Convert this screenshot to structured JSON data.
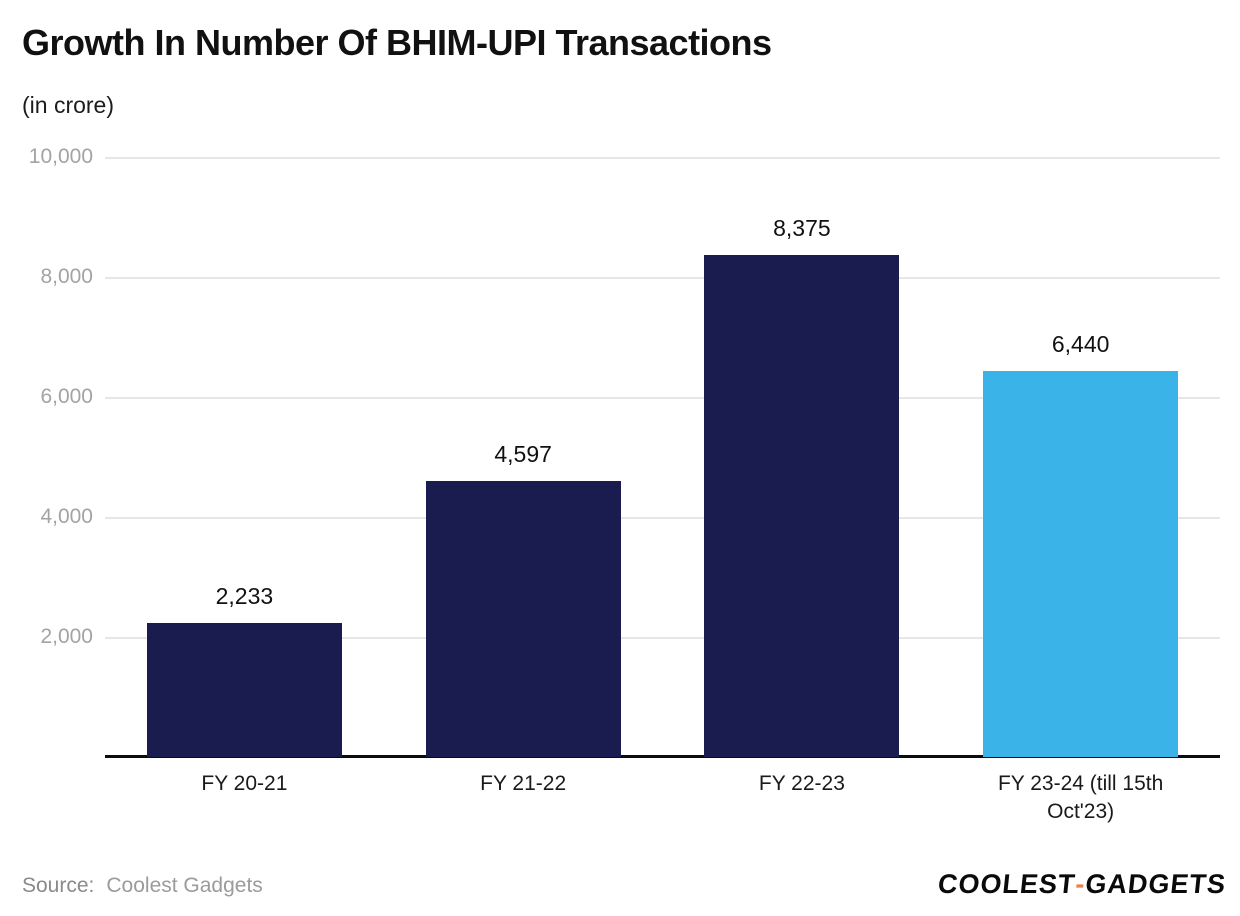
{
  "header": {
    "title": "Growth In Number Of BHIM-UPI Transactions",
    "subtitle": "(in crore)"
  },
  "footer": {
    "source_label": "Source:",
    "source_value": "Coolest Gadgets",
    "logo_coolest": "COOLEST",
    "logo_dash": "-",
    "logo_gadgets": "GADGETS"
  },
  "colors": {
    "bar_primary": "#1a1b4e",
    "bar_highlight": "#3ab4e8",
    "gridline": "#e6e6e6",
    "tick_label": "#a3a3a3",
    "axis_line": "#0c0c0c",
    "value_label": "#111111",
    "logo_dash": "#e8824b"
  },
  "chart_data": {
    "type": "bar",
    "title": "Growth In Number Of BHIM-UPI Transactions",
    "subtitle": "(in crore)",
    "categories": [
      "FY 20-21",
      "FY 21-22",
      "FY 22-23",
      "FY 23-24 (till 15th Oct'23)"
    ],
    "values": [
      2233,
      4597,
      8375,
      6440
    ],
    "value_labels": [
      "2,233",
      "4,597",
      "8,375",
      "6,440"
    ],
    "bar_colors": [
      "#1a1b4e",
      "#1a1b4e",
      "#1a1b4e",
      "#3ab4e8"
    ],
    "xlabel": "",
    "ylabel": "",
    "ylim": [
      0,
      10000
    ],
    "yticks": [
      2000,
      4000,
      6000,
      8000,
      10000
    ],
    "ytick_labels": [
      "2,000",
      "4,000",
      "6,000",
      "8,000",
      "10,000"
    ],
    "grid": "horizontal",
    "legend": "none"
  }
}
